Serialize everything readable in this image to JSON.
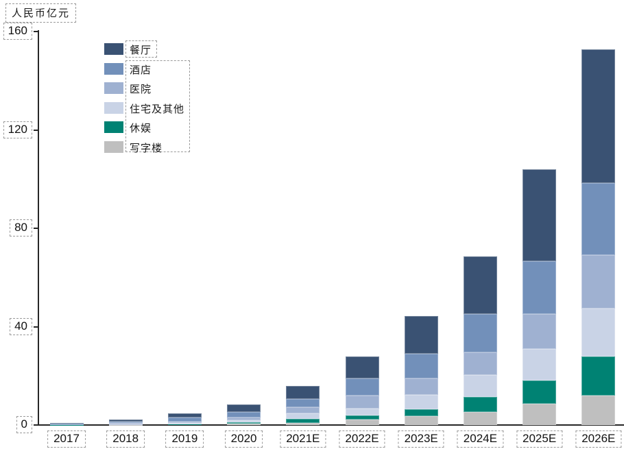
{
  "chart_data": {
    "type": "bar",
    "stacked": true,
    "unit_label": "人民币亿元",
    "categories": [
      "2017",
      "2018",
      "2019",
      "2020",
      "2021E",
      "2022E",
      "2023E",
      "2024E",
      "2025E",
      "2026E"
    ],
    "series": [
      {
        "name": "餐厅",
        "color": "#3A5273",
        "values": [
          0.4,
          0.8,
          1.6,
          3.1,
          5.5,
          8.9,
          15.3,
          23.4,
          37.4,
          54.4
        ]
      },
      {
        "name": "酒店",
        "color": "#7290BA",
        "values": [
          0.2,
          0.6,
          1.6,
          2.2,
          3.3,
          7.0,
          10.0,
          15.7,
          21.4,
          29.3
        ]
      },
      {
        "name": "医院",
        "color": "#9FB1D1",
        "values": [
          0.1,
          0.3,
          0.6,
          1.1,
          2.5,
          5.3,
          6.7,
          9.2,
          14.3,
          21.7
        ]
      },
      {
        "name": "住宅及其他",
        "color": "#C9D3E6",
        "values": [
          0.1,
          0.2,
          0.5,
          0.8,
          2.2,
          2.8,
          5.9,
          8.9,
          12.8,
          19.5
        ]
      },
      {
        "name": "休娱",
        "color": "#008273",
        "values": [
          0.05,
          0.1,
          0.2,
          0.6,
          1.7,
          1.7,
          2.8,
          6.1,
          9.5,
          15.9
        ]
      },
      {
        "name": "写字楼",
        "color": "#BFBFBF",
        "values": [
          0.05,
          0.1,
          0.2,
          0.5,
          0.8,
          2.2,
          3.6,
          5.3,
          8.6,
          12.0
        ]
      }
    ],
    "ylim": [
      0,
      160
    ],
    "yticks": [
      0,
      40,
      80,
      120,
      160
    ],
    "grid": false,
    "legend_position": "top-left-inside",
    "colors": {
      "axis": "#262626",
      "tick_text": "#111111",
      "annotation_dash": "#999999",
      "background": "#ffffff"
    }
  }
}
